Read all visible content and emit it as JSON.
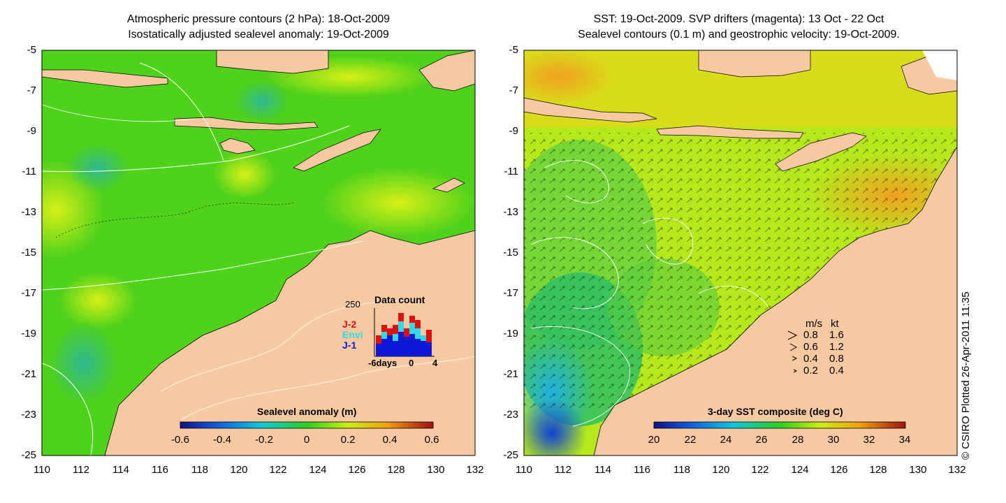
{
  "left_panel": {
    "title_line1": "Atmospheric pressure contours (2 hPa): 18-Oct-2009",
    "title_line2": "Isostatically adjusted sealevel anomaly: 19-Oct-2009",
    "colorbar_label": "Sealevel anomaly (m)",
    "colorbar_ticks": [
      "-0.6",
      "-0.4",
      "-0.2",
      "0",
      "0.2",
      "0.4",
      "0.6"
    ],
    "inset": {
      "title": "Data count",
      "ymax_label": "250",
      "x_labels": [
        "-6days",
        "0",
        "4"
      ],
      "legend": [
        {
          "label": "J-2",
          "color": "#e01010"
        },
        {
          "label": "Envi",
          "color": "#30d8e8"
        },
        {
          "label": "J-1",
          "color": "#1018d8"
        }
      ]
    }
  },
  "right_panel": {
    "title_line1": "SST: 19-Oct-2009. SVP drifters (magenta): 13 Oct - 22 Oct",
    "title_line2": "Sealevel contours (0.1 m) and geostrophic velocity: 19-Oct-2009.",
    "colorbar_label": "3-day SST composite (deg C)",
    "colorbar_ticks": [
      "20",
      "22",
      "24",
      "26",
      "28",
      "30",
      "32",
      "34"
    ],
    "speed_legend": {
      "header": [
        "m/s",
        "kt"
      ],
      "rows": [
        [
          "0.8",
          "1.6"
        ],
        [
          "0.6",
          "1.2"
        ],
        [
          "0.4",
          "0.8"
        ],
        [
          "0.2",
          "0.4"
        ]
      ]
    }
  },
  "axes": {
    "y_ticks": [
      "-5",
      "-7",
      "-9",
      "-11",
      "-13",
      "-15",
      "-17",
      "-19",
      "-21",
      "-23",
      "-25"
    ],
    "x_ticks": [
      "110",
      "112",
      "114",
      "116",
      "118",
      "120",
      "122",
      "124",
      "126",
      "128",
      "130",
      "132"
    ]
  },
  "credit": "© CSIRO Plotted 26-Apr-2011 11:35",
  "colors": {
    "land": "#f7c9a0",
    "sla_base": "#4fd21a",
    "sst_base": "#b6e81c"
  }
}
